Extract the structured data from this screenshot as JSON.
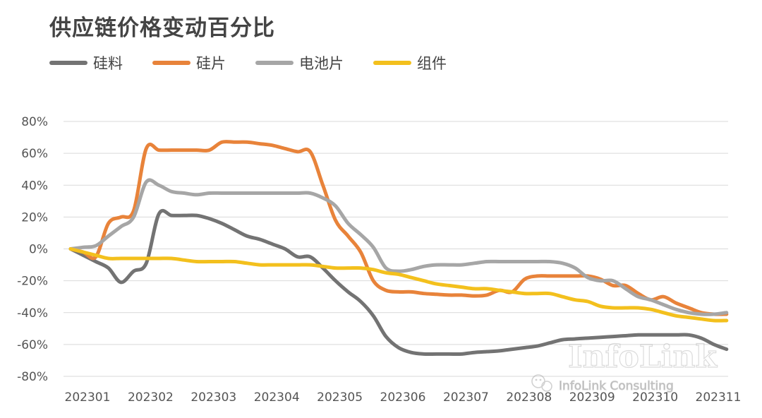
{
  "chart_data": {
    "type": "line",
    "title": "供应链价格变动百分比",
    "xlabel": "",
    "ylabel": "",
    "ylim": [
      -80,
      80
    ],
    "yticks": [
      80,
      60,
      40,
      20,
      0,
      -20,
      -40,
      -60,
      -80
    ],
    "ytick_labels": [
      "80%",
      "60%",
      "40%",
      "20%",
      "0%",
      "-20%",
      "-40%",
      "-60%",
      "-80%"
    ],
    "x_range": [
      0,
      10.4
    ],
    "categories": [
      "202301",
      "202302",
      "202303",
      "202304",
      "202305",
      "202306",
      "202307",
      "202308",
      "202309",
      "202310",
      "202311"
    ],
    "legend_position": "top-left",
    "grid": true,
    "series": [
      {
        "name": "硅料",
        "color": "#737373",
        "x": [
          0,
          0.2,
          0.4,
          0.6,
          0.8,
          1.0,
          1.2,
          1.4,
          1.6,
          1.8,
          2.0,
          2.2,
          2.4,
          2.6,
          2.8,
          3.0,
          3.2,
          3.4,
          3.6,
          3.8,
          4.0,
          4.2,
          4.4,
          4.6,
          4.8,
          5.0,
          5.2,
          5.4,
          5.6,
          5.8,
          6.0,
          6.2,
          6.4,
          6.6,
          6.8,
          7.0,
          7.2,
          7.4,
          7.6,
          7.8,
          8.0,
          8.2,
          8.4,
          8.6,
          8.8,
          9.0,
          9.2,
          9.4,
          9.6,
          9.8,
          10.0,
          10.2,
          10.4
        ],
        "y": [
          0,
          -4,
          -8,
          -12,
          -21,
          -14,
          -9,
          22,
          21,
          21,
          21,
          19,
          16,
          12,
          8,
          6,
          3,
          0,
          -5,
          -5,
          -12,
          -20,
          -27,
          -33,
          -42,
          -55,
          -62,
          -65,
          -66,
          -66,
          -66,
          -66,
          -65,
          -64.5,
          -64,
          -63,
          -62,
          -61,
          -59,
          -57,
          -56.5,
          -56,
          -55.5,
          -55,
          -54.5,
          -54,
          -54,
          -54,
          -54,
          -54,
          -56,
          -60,
          -63
        ]
      },
      {
        "name": "硅片",
        "color": "#E8833A",
        "x": [
          0,
          0.2,
          0.4,
          0.6,
          0.8,
          1.0,
          1.2,
          1.4,
          1.6,
          1.8,
          2.0,
          2.2,
          2.4,
          2.6,
          2.8,
          3.0,
          3.2,
          3.4,
          3.6,
          3.8,
          4.0,
          4.2,
          4.4,
          4.6,
          4.8,
          5.0,
          5.2,
          5.4,
          5.6,
          5.8,
          6.0,
          6.2,
          6.4,
          6.6,
          6.8,
          7.0,
          7.2,
          7.4,
          7.6,
          7.8,
          8.0,
          8.2,
          8.4,
          8.6,
          8.8,
          9.0,
          9.2,
          9.4,
          9.6,
          9.8,
          10.0,
          10.2,
          10.4
        ],
        "y": [
          0,
          -2,
          -5,
          16,
          20,
          24,
          63,
          62,
          62,
          62,
          62,
          62,
          67,
          67,
          67,
          66,
          65,
          63,
          61,
          61,
          40,
          18,
          8,
          -2,
          -20,
          -26,
          -27,
          -27,
          -28,
          -28.5,
          -29,
          -29,
          -29.5,
          -29,
          -26,
          -27,
          -19,
          -17,
          -17,
          -17,
          -17,
          -17,
          -19,
          -23,
          -23,
          -28,
          -32,
          -30,
          -34,
          -37,
          -40,
          -41,
          -41
        ]
      },
      {
        "name": "电池片",
        "color": "#A6A6A6",
        "x": [
          0,
          0.2,
          0.4,
          0.6,
          0.8,
          1.0,
          1.2,
          1.4,
          1.6,
          1.8,
          2.0,
          2.2,
          2.4,
          2.6,
          2.8,
          3.0,
          3.2,
          3.4,
          3.6,
          3.8,
          4.0,
          4.2,
          4.4,
          4.6,
          4.8,
          5.0,
          5.2,
          5.4,
          5.6,
          5.8,
          6.0,
          6.2,
          6.4,
          6.6,
          6.8,
          7.0,
          7.2,
          7.4,
          7.6,
          7.8,
          8.0,
          8.2,
          8.4,
          8.6,
          8.8,
          9.0,
          9.2,
          9.4,
          9.6,
          9.8,
          10.0,
          10.2,
          10.4
        ],
        "y": [
          0,
          1,
          2,
          8,
          14,
          20,
          42,
          40,
          36,
          35,
          34,
          35,
          35,
          35,
          35,
          35,
          35,
          35,
          35,
          35,
          32,
          27,
          16,
          9,
          1,
          -12,
          -14,
          -13,
          -11,
          -10,
          -10,
          -10,
          -9,
          -8,
          -8,
          -8,
          -8,
          -8,
          -8,
          -9,
          -12,
          -18,
          -20,
          -20,
          -25,
          -30,
          -32,
          -35,
          -38,
          -40,
          -41,
          -41,
          -40
        ]
      },
      {
        "name": "组件",
        "color": "#F3C01D",
        "x": [
          0,
          0.2,
          0.4,
          0.6,
          0.8,
          1.0,
          1.2,
          1.4,
          1.6,
          1.8,
          2.0,
          2.2,
          2.4,
          2.6,
          2.8,
          3.0,
          3.2,
          3.4,
          3.6,
          3.8,
          4.0,
          4.2,
          4.4,
          4.6,
          4.8,
          5.0,
          5.2,
          5.4,
          5.6,
          5.8,
          6.0,
          6.2,
          6.4,
          6.6,
          6.8,
          7.0,
          7.2,
          7.4,
          7.6,
          7.8,
          8.0,
          8.2,
          8.4,
          8.6,
          8.8,
          9.0,
          9.2,
          9.4,
          9.6,
          9.8,
          10.0,
          10.2,
          10.4
        ],
        "y": [
          0,
          -2,
          -4,
          -6,
          -6,
          -6,
          -6,
          -6,
          -6,
          -7,
          -8,
          -8,
          -8,
          -8,
          -9,
          -10,
          -10,
          -10,
          -10,
          -10,
          -11,
          -12,
          -12,
          -12,
          -13,
          -15,
          -16,
          -18,
          -20,
          -22,
          -23,
          -24,
          -25,
          -25,
          -26,
          -27,
          -28,
          -28,
          -28,
          -30,
          -32,
          -33,
          -36,
          -37,
          -37,
          -37,
          -38,
          -40,
          -42,
          -43,
          -44,
          -45,
          -45
        ]
      }
    ]
  },
  "watermark": {
    "logo_text": "InfoLink",
    "caption": "InfoLink Consulting"
  }
}
